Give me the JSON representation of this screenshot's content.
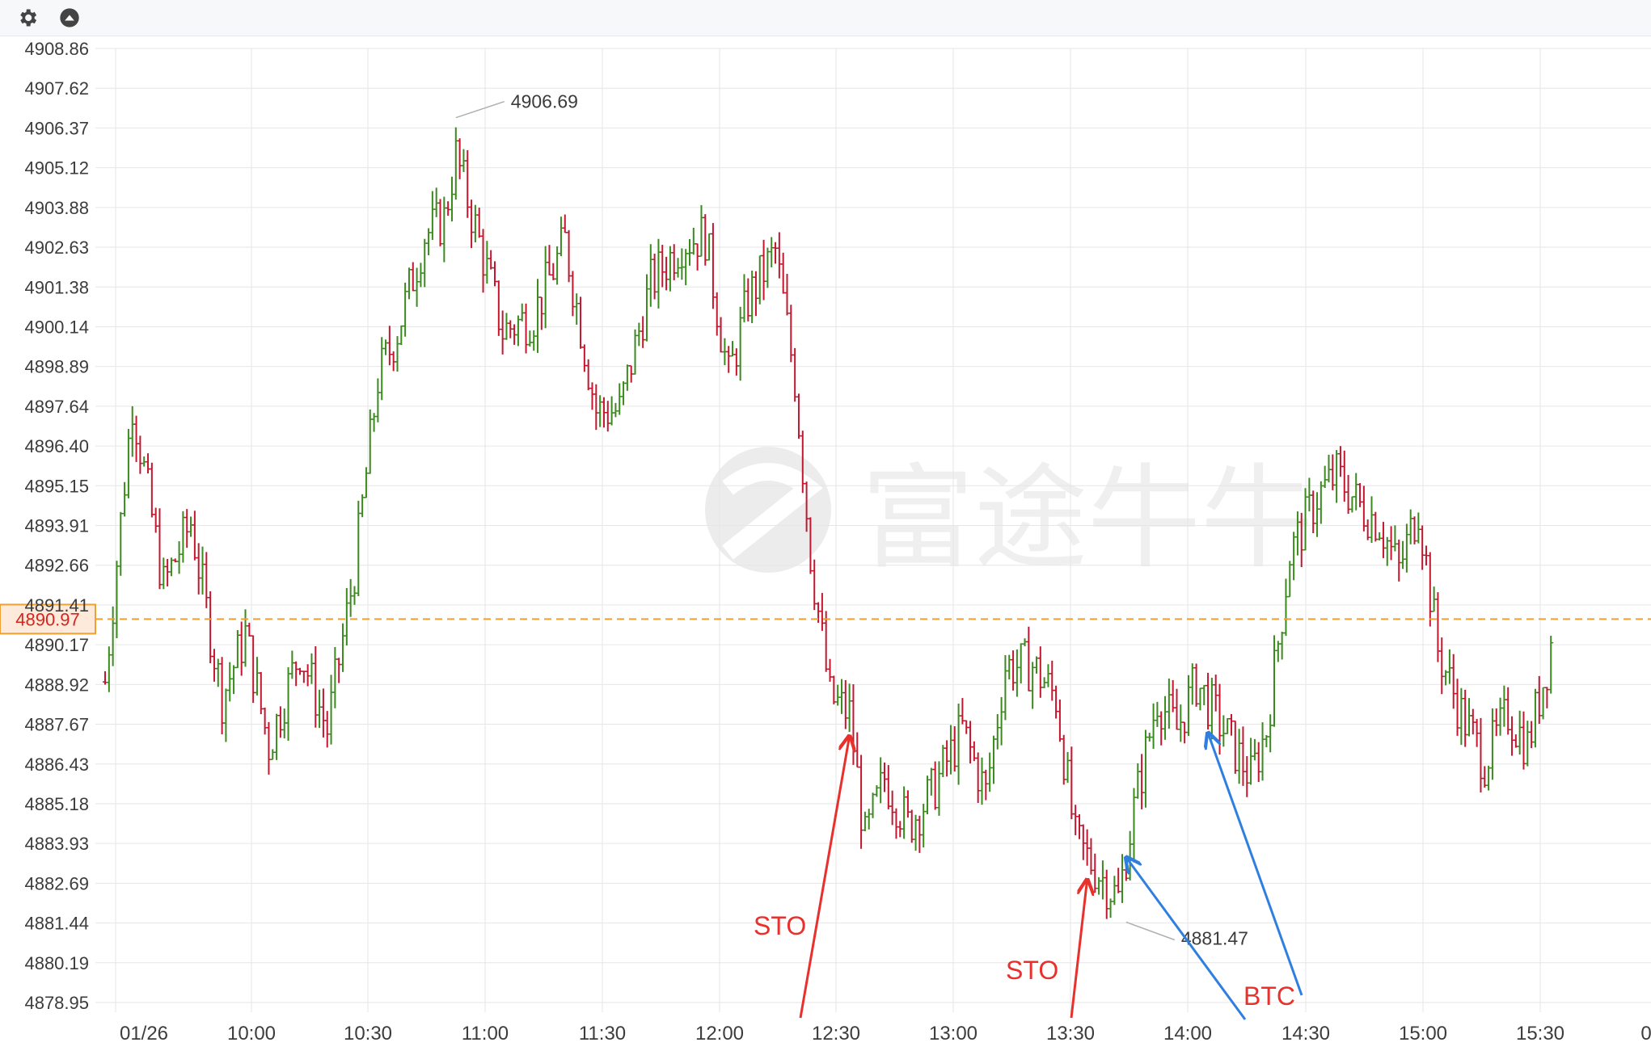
{
  "toolbar": {
    "icons": [
      "gear-icon",
      "collapse-up-icon"
    ]
  },
  "watermark": "富途牛牛",
  "chart_data": {
    "type": "bar",
    "subtype": "ohlc",
    "date": "01/26",
    "x_ticks": [
      "01/26",
      "10:00",
      "10:30",
      "11:00",
      "11:30",
      "12:00",
      "12:30",
      "13:00",
      "13:30",
      "14:00",
      "14:30",
      "15:00",
      "15:30",
      "0"
    ],
    "y_ticks": [
      "4908.86",
      "4907.62",
      "4906.37",
      "4905.12",
      "4903.88",
      "4902.63",
      "4901.38",
      "4900.14",
      "4898.89",
      "4897.64",
      "4896.40",
      "4895.15",
      "4893.91",
      "4892.66",
      "4891.41",
      "4890.17",
      "4888.92",
      "4887.67",
      "4886.43",
      "4885.18",
      "4883.93",
      "4882.69",
      "4881.44",
      "4880.19",
      "4878.95"
    ],
    "ylim": [
      4878.95,
      4908.86
    ],
    "x_range_minutes": [
      570,
      960
    ],
    "current_price": "4890.97",
    "high_callout": {
      "label": "4906.69",
      "time": "11:00",
      "value": 4906.69
    },
    "low_callout": {
      "label": "4881.47",
      "time": "13:52",
      "value": 4881.47
    },
    "annotations": [
      {
        "text": "STO",
        "color": "#e8302c",
        "arrow_to_time": "12:41",
        "arrow_to_value": 4887.3
      },
      {
        "text": "STO",
        "color": "#e8302c",
        "arrow_to_time": "13:42",
        "arrow_to_value": 4882.8
      },
      {
        "text": "BTC",
        "color": "#e8302c",
        "arrow_color": "#2f7fe0",
        "arrows_to": [
          {
            "time": "13:52",
            "value": 4883.5
          },
          {
            "time": "14:13",
            "value": 4887.4
          }
        ]
      }
    ],
    "anchors": [
      [
        "09:30",
        4889.0
      ],
      [
        "09:37",
        4897.8
      ],
      [
        "09:45",
        4892.0
      ],
      [
        "09:52",
        4894.0
      ],
      [
        "10:00",
        4888.5
      ],
      [
        "10:06",
        4890.5
      ],
      [
        "10:12",
        4887.0
      ],
      [
        "10:20",
        4890.0
      ],
      [
        "10:27",
        4887.5
      ],
      [
        "10:34",
        4892.5
      ],
      [
        "10:40",
        4898.5
      ],
      [
        "10:45",
        4900.0
      ],
      [
        "10:52",
        4903.0
      ],
      [
        "10:57",
        4903.5
      ],
      [
        "11:00",
        4905.5
      ],
      [
        "11:06",
        4902.8
      ],
      [
        "11:12",
        4900.0
      ],
      [
        "11:20",
        4900.5
      ],
      [
        "11:28",
        4902.8
      ],
      [
        "11:36",
        4897.5
      ],
      [
        "11:42",
        4897.5
      ],
      [
        "11:50",
        4901.5
      ],
      [
        "11:58",
        4902.8
      ],
      [
        "12:04",
        4903.0
      ],
      [
        "12:10",
        4898.5
      ],
      [
        "12:15",
        4901.0
      ],
      [
        "12:22",
        4902.5
      ],
      [
        "12:27",
        4898.5
      ],
      [
        "12:31",
        4893.0
      ],
      [
        "12:36",
        4888.5
      ],
      [
        "12:41",
        4888.0
      ],
      [
        "12:45",
        4884.0
      ],
      [
        "12:50",
        4886.0
      ],
      [
        "12:56",
        4884.5
      ],
      [
        "13:02",
        4885.5
      ],
      [
        "13:10",
        4887.5
      ],
      [
        "13:16",
        4885.5
      ],
      [
        "13:21",
        4889.5
      ],
      [
        "13:28",
        4889.5
      ],
      [
        "13:34",
        4888.5
      ],
      [
        "13:39",
        4884.0
      ],
      [
        "13:45",
        4883.0
      ],
      [
        "13:50",
        4882.2
      ],
      [
        "13:54",
        4885.0
      ],
      [
        "14:00",
        4888.5
      ],
      [
        "14:05",
        4887.5
      ],
      [
        "14:10",
        4889.0
      ],
      [
        "14:17",
        4887.5
      ],
      [
        "14:24",
        4886.0
      ],
      [
        "14:28",
        4887.5
      ],
      [
        "14:34",
        4893.0
      ],
      [
        "14:41",
        4894.8
      ],
      [
        "14:46",
        4895.5
      ],
      [
        "14:52",
        4894.5
      ],
      [
        "14:57",
        4894.0
      ],
      [
        "15:02",
        4892.5
      ],
      [
        "15:07",
        4894.5
      ],
      [
        "15:12",
        4890.0
      ],
      [
        "15:18",
        4888.0
      ],
      [
        "15:24",
        4886.5
      ],
      [
        "15:30",
        4888.0
      ],
      [
        "15:35",
        4887.0
      ],
      [
        "15:40",
        4889.5
      ],
      [
        "15:41",
        4890.2
      ]
    ],
    "up_color": "#3a8a1e",
    "down_color": "#c2172e",
    "grid": true
  }
}
